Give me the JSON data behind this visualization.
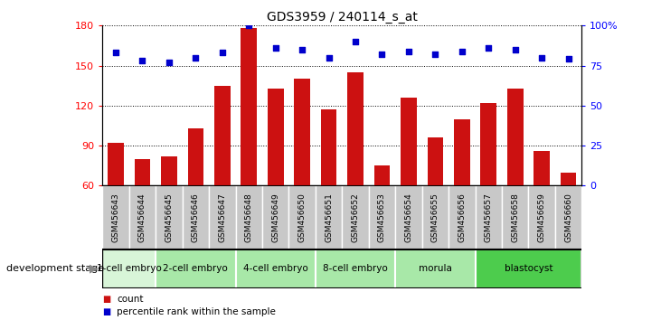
{
  "title": "GDS3959 / 240114_s_at",
  "samples": [
    "GSM456643",
    "GSM456644",
    "GSM456645",
    "GSM456646",
    "GSM456647",
    "GSM456648",
    "GSM456649",
    "GSM456650",
    "GSM456651",
    "GSM456652",
    "GSM456653",
    "GSM456654",
    "GSM456655",
    "GSM456656",
    "GSM456657",
    "GSM456658",
    "GSM456659",
    "GSM456660"
  ],
  "counts": [
    92,
    80,
    82,
    103,
    135,
    178,
    133,
    140,
    117,
    145,
    75,
    126,
    96,
    110,
    122,
    133,
    86,
    70
  ],
  "percentile_ranks": [
    83,
    78,
    77,
    80,
    83,
    100,
    86,
    85,
    80,
    90,
    82,
    84,
    82,
    84,
    86,
    85,
    80,
    79
  ],
  "ylim_left": [
    60,
    180
  ],
  "ylim_right": [
    0,
    100
  ],
  "yticks_left": [
    60,
    90,
    120,
    150,
    180
  ],
  "yticks_right": [
    0,
    25,
    50,
    75,
    100
  ],
  "stages": [
    {
      "label": "1-cell embryo",
      "start": 0,
      "end": 2
    },
    {
      "label": "2-cell embryo",
      "start": 2,
      "end": 5
    },
    {
      "label": "4-cell embryo",
      "start": 5,
      "end": 8
    },
    {
      "label": "8-cell embryo",
      "start": 8,
      "end": 11
    },
    {
      "label": "morula",
      "start": 11,
      "end": 14
    },
    {
      "label": "blastocyst",
      "start": 14,
      "end": 18
    }
  ],
  "stage_colors": [
    "#c8f0c8",
    "#a0e0a0",
    "#a0e0a0",
    "#a0e0a0",
    "#a0e0a0",
    "#5cd65c"
  ],
  "bar_color": "#cc1111",
  "dot_color": "#0000cc",
  "plot_bg": "#ffffff",
  "sample_label_bg": "#c8c8c8",
  "legend_count_color": "#cc1111",
  "legend_dot_color": "#0000cc"
}
